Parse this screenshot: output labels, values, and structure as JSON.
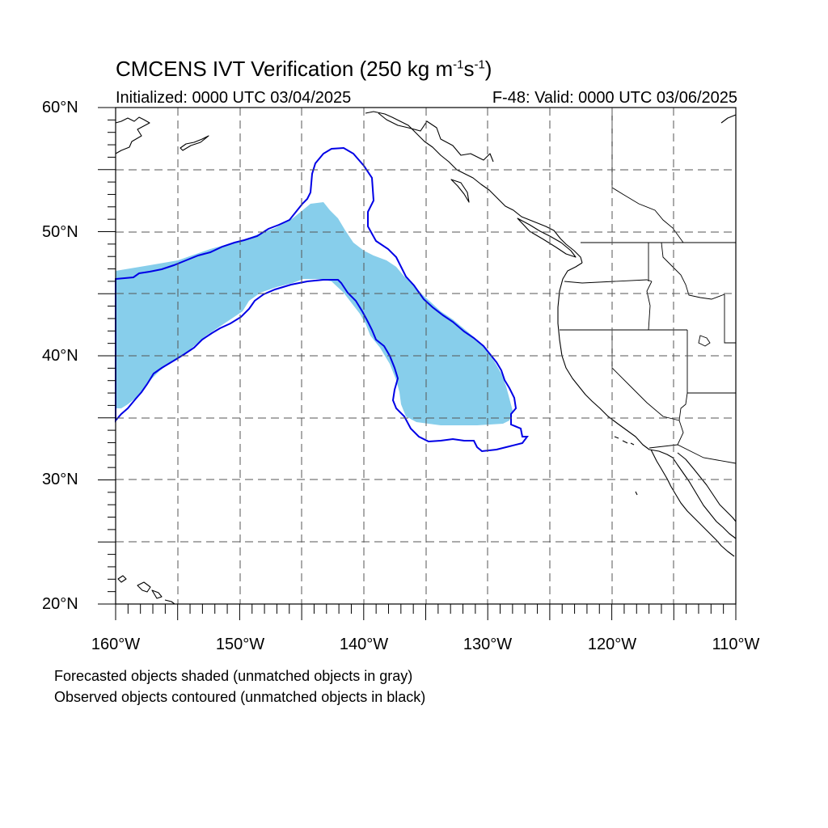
{
  "title": {
    "prefix": "CMCENS IVT Verification (250 kg m",
    "sup1": "-1",
    "mid": "s",
    "sup2": "-1",
    "suffix": ")"
  },
  "subtitle_left": "Initialized: 0000 UTC 03/04/2025",
  "subtitle_right": "F-48: Valid: 0000 UTC 03/06/2025",
  "lat_labels": [
    "60°N",
    "50°N",
    "40°N",
    "30°N",
    "20°N"
  ],
  "lon_labels": [
    "160°W",
    "150°W",
    "140°W",
    "130°W",
    "120°W",
    "110°W"
  ],
  "notes": [
    "Forecasted objects shaded (unmatched objects in gray)",
    "Observed objects contoured (unmatched objects in black)"
  ],
  "colors": {
    "forecast_fill": "#87CEEB",
    "observed_contour": "#0000E6",
    "coastline": "#000000",
    "grid": "#555555"
  },
  "map_extent": {
    "lon_min": -160,
    "lon_max": -110,
    "lat_min": 20,
    "lat_max": 60
  }
}
